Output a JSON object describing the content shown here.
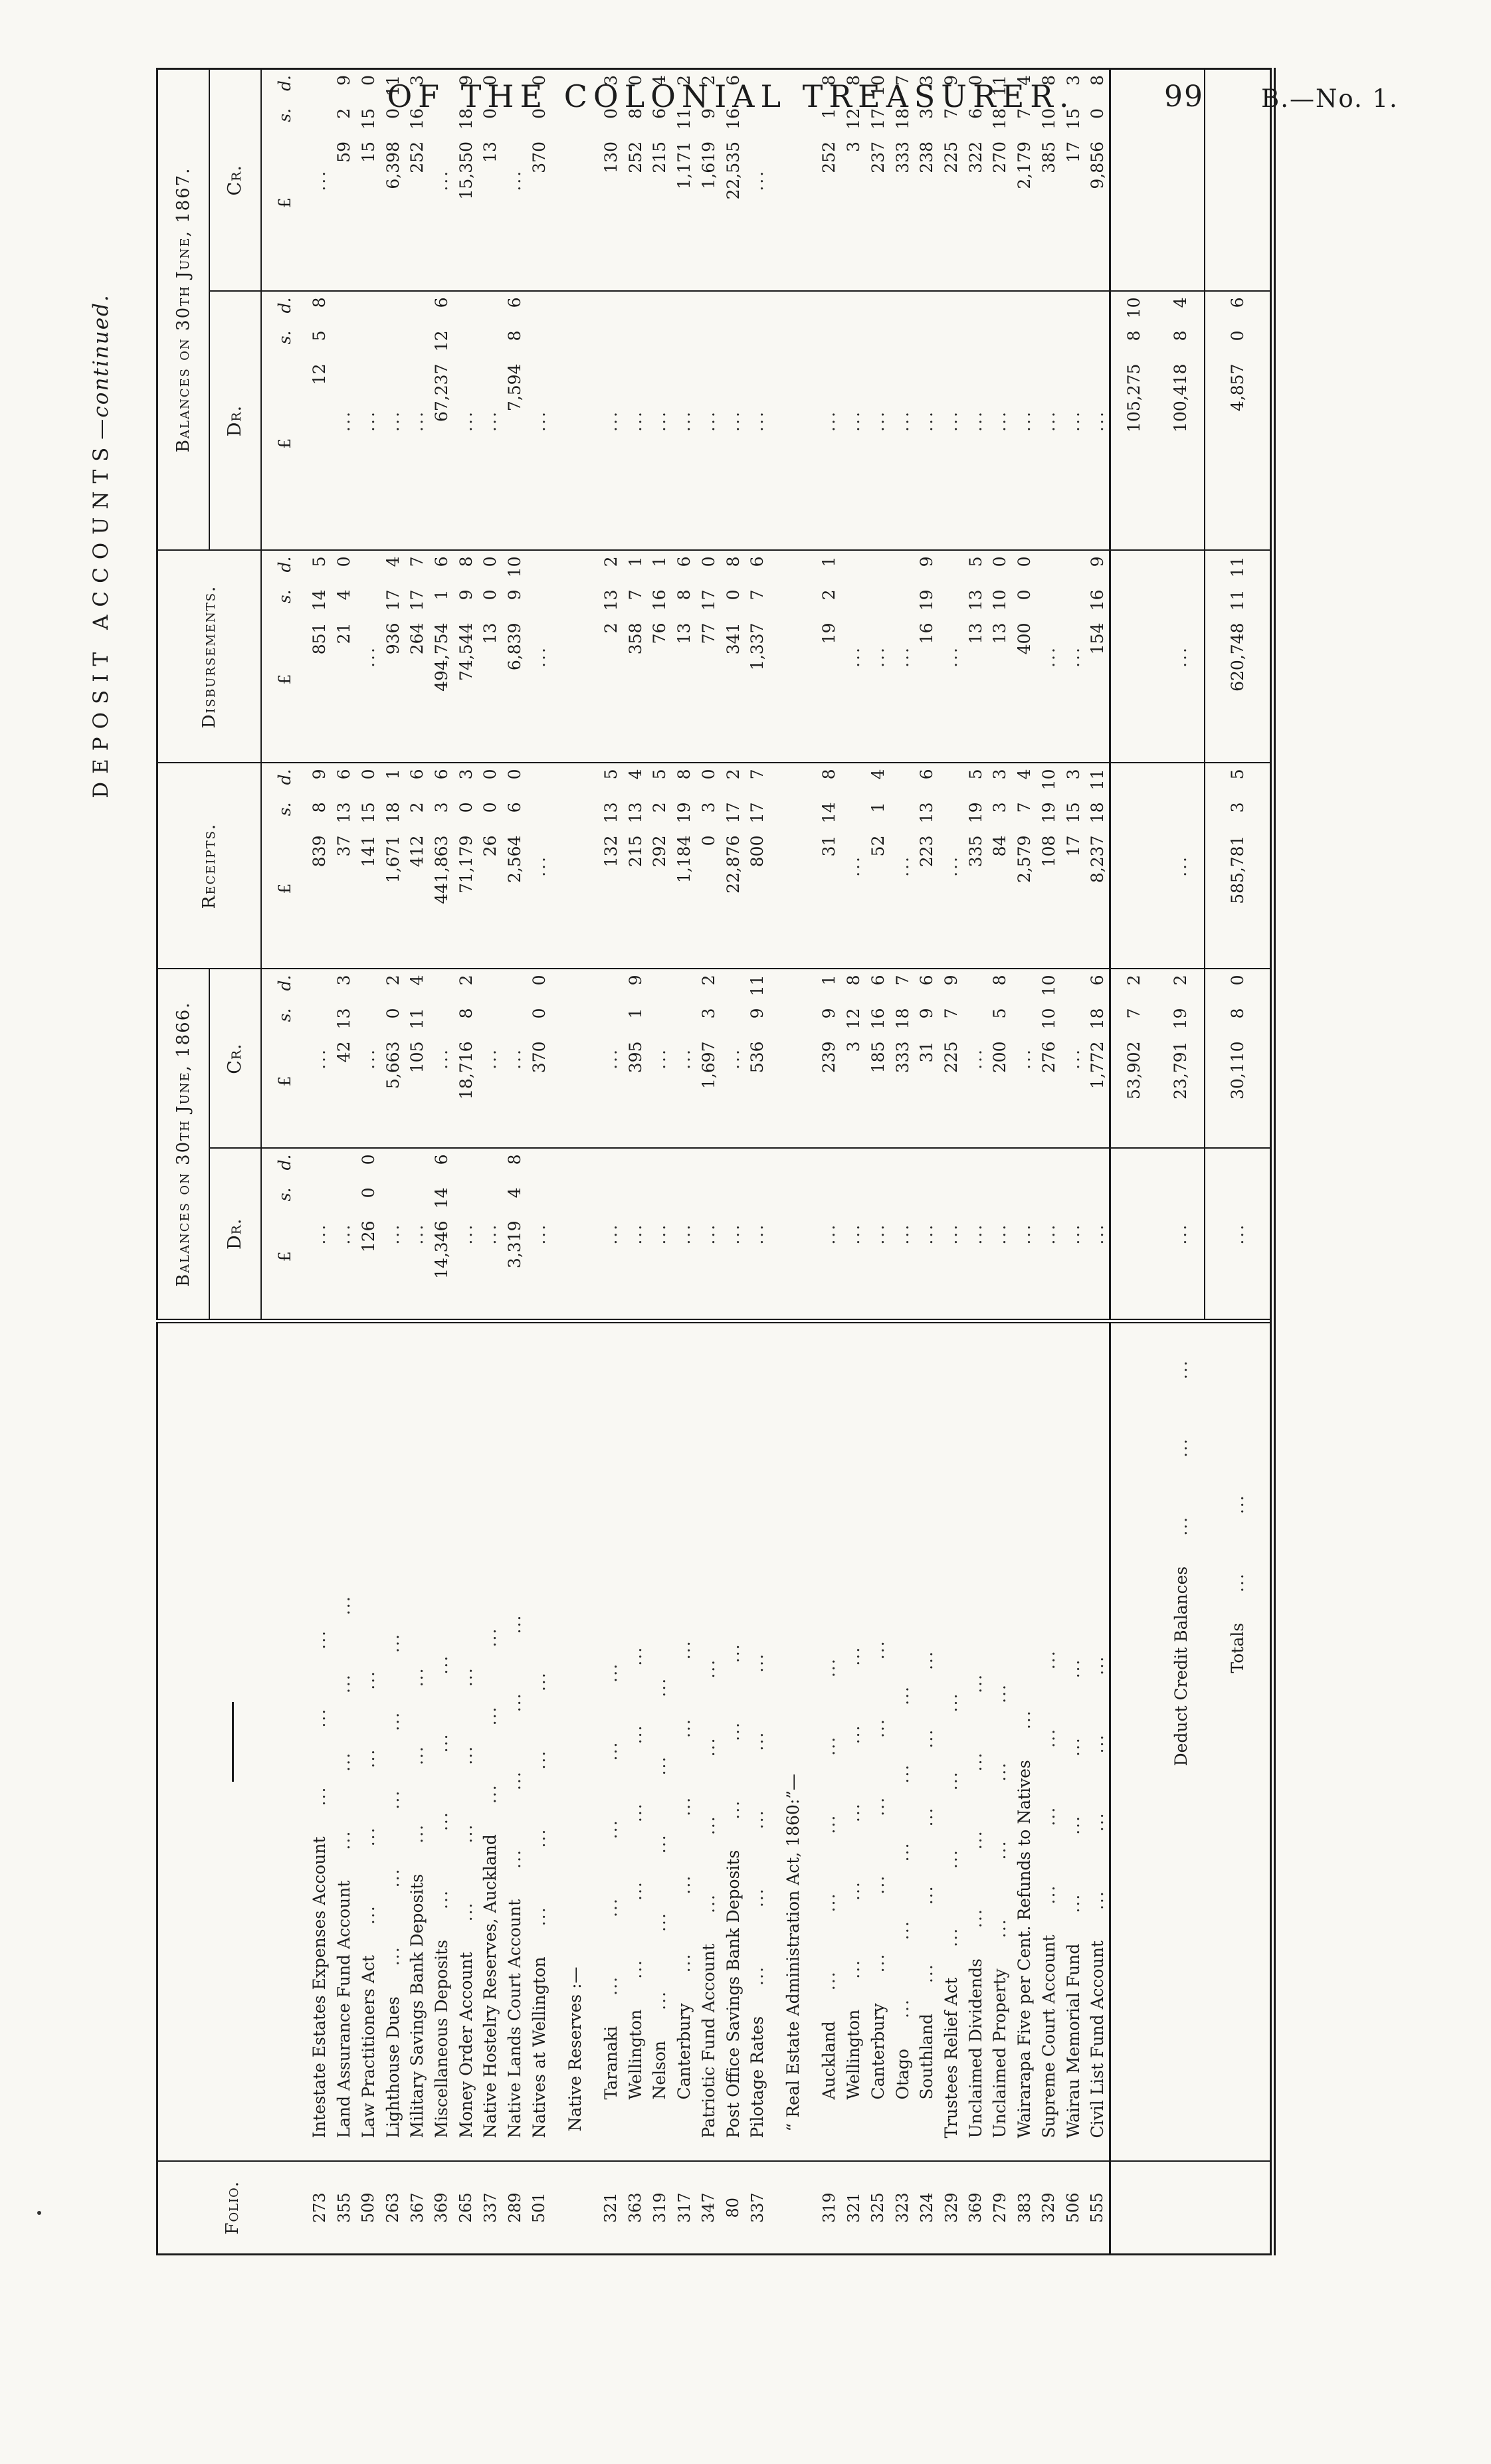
{
  "page": {
    "running_title": "OF THE COLONIAL TREASURER.",
    "page_number": "99",
    "issue_ref": "B.—No. 1.",
    "side_label_caps": "DEPOSIT ACCOUNTS",
    "side_label_continued": "—continued."
  },
  "table": {
    "header": {
      "folio": "Folio.",
      "bal_1866": "Balances on 30th June, 1866.",
      "receipts": "Receipts.",
      "disbursements": "Disbursements.",
      "bal_1867": "Balances on 30th June, 1867.",
      "dr": "Dr.",
      "cr": "Cr.",
      "pounds": "£",
      "shillings": "s.",
      "pence": "d."
    },
    "rows": [
      {
        "type": "account",
        "folio": "273",
        "name": "Intestate Estates Expenses Account",
        "leaders": 3,
        "dr66": ".",
        "cr66": ".",
        "rec": [
          "839",
          "8",
          "9"
        ],
        "disb": [
          "851",
          "14",
          "5"
        ],
        "dr67": [
          "12",
          "5",
          "8"
        ],
        "cr67": "."
      },
      {
        "type": "account",
        "folio": "355",
        "name": "Land Assurance Fund Account",
        "leaders": 4,
        "dr66": ".",
        "cr66": [
          "42",
          "13",
          "3"
        ],
        "rec": [
          "37",
          "13",
          "6"
        ],
        "disb": [
          "21",
          "4",
          "0"
        ],
        "dr67": ".",
        "cr67": [
          "59",
          "2",
          "9"
        ]
      },
      {
        "type": "account",
        "folio": "509",
        "name": "Law Practitioners Act",
        "leaders": 4,
        "dr66": [
          "126",
          "0",
          "0"
        ],
        "cr66": ".",
        "rec": [
          "141",
          "15",
          "0"
        ],
        "disb": ".",
        "dr67": ".",
        "cr67": [
          "15",
          "15",
          "0"
        ]
      },
      {
        "type": "account",
        "folio": "263",
        "name": "Lighthouse Dues",
        "leaders": 5,
        "dr66": ".",
        "cr66": [
          "5,663",
          "0",
          "2"
        ],
        "rec": [
          "1,671",
          "18",
          "1"
        ],
        "disb": [
          "936",
          "17",
          "4"
        ],
        "dr67": ".",
        "cr67": [
          "6,398",
          "0",
          "11"
        ]
      },
      {
        "type": "account",
        "folio": "367",
        "name": "Military Savings Bank Deposits",
        "leaders": 3,
        "dr66": ".",
        "cr66": [
          "105",
          "11",
          "4"
        ],
        "rec": [
          "412",
          "2",
          "6"
        ],
        "disb": [
          "264",
          "17",
          "7"
        ],
        "dr67": ".",
        "cr67": [
          "252",
          "16",
          "3"
        ]
      },
      {
        "type": "account",
        "folio": "369",
        "name": "Miscellaneous Deposits",
        "leaders": 4,
        "dr66": [
          "14,346",
          "14",
          "6"
        ],
        "cr66": ".",
        "rec": [
          "441,863",
          "3",
          "6"
        ],
        "disb": [
          "494,754",
          "1",
          "6"
        ],
        "dr67": [
          "67,237",
          "12",
          "6"
        ],
        "cr67": "."
      },
      {
        "type": "account",
        "folio": "265",
        "name": "Money Order Account",
        "leaders": 4,
        "dr66": ".",
        "cr66": [
          "18,716",
          "8",
          "2"
        ],
        "rec": [
          "71,179",
          "0",
          "3"
        ],
        "disb": [
          "74,544",
          "9",
          "8"
        ],
        "dr67": ".",
        "cr67": [
          "15,350",
          "18",
          "9"
        ]
      },
      {
        "type": "account",
        "folio": "337",
        "name": "Native Hostelry Reserves, Auckland",
        "leaders": 3,
        "dr66": ".",
        "cr66": ".",
        "rec": [
          "26",
          "0",
          "0"
        ],
        "disb": [
          "13",
          "0",
          "0"
        ],
        "dr67": ".",
        "cr67": [
          "13",
          "0",
          "0"
        ]
      },
      {
        "type": "account",
        "folio": "289",
        "name": "Native Lands Court Account",
        "leaders": 4,
        "dr66": [
          "3,319",
          "4",
          "8"
        ],
        "cr66": ".",
        "rec": [
          "2,564",
          "6",
          "0"
        ],
        "disb": [
          "6,839",
          "9",
          "10"
        ],
        "dr67": [
          "7,594",
          "8",
          "6"
        ],
        "cr67": "."
      },
      {
        "type": "account",
        "folio": "501",
        "name": "Natives at Wellington",
        "leaders": 4,
        "dr66": ".",
        "cr66": [
          "370",
          "0",
          "0"
        ],
        "rec": ".",
        "disb": ".",
        "dr67": ".",
        "cr67": [
          "370",
          "0",
          "0"
        ]
      },
      {
        "type": "group",
        "name": "Native Reserves :—"
      },
      {
        "type": "account",
        "folio": "321",
        "name": "Taranaki",
        "indent": 1,
        "leaders": 5,
        "dr66": ".",
        "cr66": ".",
        "rec": [
          "132",
          "13",
          "5"
        ],
        "disb": [
          "2",
          "13",
          "2"
        ],
        "dr67": ".",
        "cr67": [
          "130",
          "0",
          "3"
        ]
      },
      {
        "type": "account",
        "folio": "363",
        "name": "Wellington",
        "indent": 1,
        "leaders": 5,
        "dr66": ".",
        "cr66": [
          "395",
          "1",
          "9"
        ],
        "rec": [
          "215",
          "13",
          "4"
        ],
        "disb": [
          "358",
          "7",
          "1"
        ],
        "dr67": ".",
        "cr67": [
          "252",
          "8",
          "0"
        ]
      },
      {
        "type": "account",
        "folio": "319",
        "name": "Nelson",
        "indent": 1,
        "leaders": 5,
        "dr66": ".",
        "cr66": ".",
        "rec": [
          "292",
          "2",
          "5"
        ],
        "disb": [
          "76",
          "16",
          "1"
        ],
        "dr67": ".",
        "cr67": [
          "215",
          "6",
          "4"
        ]
      },
      {
        "type": "account",
        "folio": "317",
        "name": "Canterbury",
        "indent": 1,
        "leaders": 5,
        "dr66": ".",
        "cr66": ".",
        "rec": [
          "1,184",
          "19",
          "8"
        ],
        "disb": [
          "13",
          "8",
          "6"
        ],
        "dr67": ".",
        "cr67": [
          "1,171",
          "11",
          "2"
        ]
      },
      {
        "type": "account",
        "folio": "347",
        "name": "Patriotic Fund Account",
        "leaders": 4,
        "dr66": ".",
        "cr66": [
          "1,697",
          "3",
          "2"
        ],
        "rec": [
          "0",
          "3",
          "0"
        ],
        "disb": [
          "77",
          "17",
          "0"
        ],
        "dr67": ".",
        "cr67": [
          "1,619",
          "9",
          "2"
        ]
      },
      {
        "type": "account",
        "folio": "80",
        "name": "Post Office Savings Bank Deposits",
        "leaders": 3,
        "dr66": ".",
        "cr66": ".",
        "rec": [
          "22,876",
          "17",
          "2"
        ],
        "disb": [
          "341",
          "0",
          "8"
        ],
        "dr67": ".",
        "cr67": [
          "22,535",
          "16",
          "6"
        ]
      },
      {
        "type": "account",
        "folio": "337",
        "name": "Pilotage Rates",
        "leaders": 5,
        "dr66": ".",
        "cr66": [
          "536",
          "9",
          "11"
        ],
        "rec": [
          "800",
          "17",
          "7"
        ],
        "disb": [
          "1,337",
          "7",
          "6"
        ],
        "dr67": ".",
        "cr67": "."
      },
      {
        "type": "group",
        "name": "“ Real Estate Administration Act, 1860:”—"
      },
      {
        "type": "account",
        "folio": "319",
        "name": "Auckland",
        "indent": 1,
        "leaders": 5,
        "dr66": ".",
        "cr66": [
          "239",
          "9",
          "1"
        ],
        "rec": [
          "31",
          "14",
          "8"
        ],
        "disb": [
          "19",
          "2",
          "1"
        ],
        "dr67": ".",
        "cr67": [
          "252",
          "1",
          "8"
        ]
      },
      {
        "type": "account",
        "folio": "321",
        "name": "Wellington",
        "indent": 1,
        "leaders": 5,
        "dr66": ".",
        "cr66": [
          "3",
          "12",
          "8"
        ],
        "rec": ".",
        "disb": ".",
        "dr67": ".",
        "cr67": [
          "3",
          "12",
          "8"
        ]
      },
      {
        "type": "account",
        "folio": "325",
        "name": "Canterbury",
        "indent": 1,
        "leaders": 5,
        "dr66": ".",
        "cr66": [
          "185",
          "16",
          "6"
        ],
        "rec": [
          "52",
          "1",
          "4"
        ],
        "disb": ".",
        "dr67": ".",
        "cr67": [
          "237",
          "17",
          "10"
        ]
      },
      {
        "type": "account",
        "folio": "323",
        "name": "Otago",
        "indent": 1,
        "leaders": 5,
        "dr66": ".",
        "cr66": [
          "333",
          "18",
          "7"
        ],
        "rec": ".",
        "disb": ".",
        "dr67": ".",
        "cr67": [
          "333",
          "18",
          "7"
        ]
      },
      {
        "type": "account",
        "folio": "324",
        "name": "Southland",
        "indent": 1,
        "leaders": 5,
        "dr66": ".",
        "cr66": [
          "31",
          "9",
          "6"
        ],
        "rec": [
          "223",
          "13",
          "6"
        ],
        "disb": [
          "16",
          "19",
          "9"
        ],
        "dr67": ".",
        "cr67": [
          "238",
          "3",
          "3"
        ]
      },
      {
        "type": "account",
        "folio": "329",
        "name": "Trustees Relief Act",
        "leaders": 4,
        "dr66": ".",
        "cr66": [
          "225",
          "7",
          "9"
        ],
        "rec": ".",
        "disb": ".",
        "dr67": ".",
        "cr67": [
          "225",
          "7",
          "9"
        ]
      },
      {
        "type": "account",
        "folio": "369",
        "name": "Unclaimed Dividends",
        "leaders": 4,
        "dr66": ".",
        "cr66": ".",
        "rec": [
          "335",
          "19",
          "5"
        ],
        "disb": [
          "13",
          "13",
          "5"
        ],
        "dr67": ".",
        "cr67": [
          "322",
          "6",
          "0"
        ]
      },
      {
        "type": "account",
        "folio": "279",
        "name": "Unclaimed Property",
        "leaders": 4,
        "dr66": ".",
        "cr66": [
          "200",
          "5",
          "8"
        ],
        "rec": [
          "84",
          "3",
          "3"
        ],
        "disb": [
          "13",
          "10",
          "0"
        ],
        "dr67": ".",
        "cr67": [
          "270",
          "18",
          "11"
        ]
      },
      {
        "type": "account",
        "folio": "383",
        "name": "Wairarapa Five per Cent. Refunds to Natives",
        "leaders": 1,
        "dr66": ".",
        "cr66": ".",
        "rec": [
          "2,579",
          "7",
          "4"
        ],
        "disb": [
          "400",
          "0",
          "0"
        ],
        "dr67": ".",
        "cr67": [
          "2,179",
          "7",
          "4"
        ]
      },
      {
        "type": "account",
        "folio": "329",
        "name": "Supreme Court Account",
        "leaders": 4,
        "dr66": ".",
        "cr66": [
          "276",
          "10",
          "10"
        ],
        "rec": [
          "108",
          "19",
          "10"
        ],
        "disb": ".",
        "dr67": ".",
        "cr67": [
          "385",
          "10",
          "8"
        ]
      },
      {
        "type": "account",
        "folio": "506",
        "name": "Wairau Memorial Fund",
        "leaders": 4,
        "dr66": ".",
        "cr66": ".",
        "rec": [
          "17",
          "15",
          "3"
        ],
        "disb": ".",
        "dr67": ".",
        "cr67": [
          "17",
          "15",
          "3"
        ]
      },
      {
        "type": "account",
        "folio": "555",
        "name": "Civil List Fund Account",
        "leaders": 4,
        "dr66": ".",
        "cr66": [
          "1,772",
          "18",
          "6"
        ],
        "rec": [
          "8,237",
          "18",
          "11"
        ],
        "disb": [
          "154",
          "16",
          "9"
        ],
        "dr67": ".",
        "cr67": [
          "9,856",
          "0",
          "8"
        ]
      },
      {
        "type": "subtotal",
        "name": "",
        "dr66": "",
        "cr66": [
          "53,902",
          "7",
          "2"
        ],
        "rec": "",
        "disb": "",
        "dr67": [
          "105,275",
          "8",
          "10"
        ],
        "cr67": ""
      },
      {
        "type": "deduct",
        "name": "Deduct Credit Balances",
        "leaders": 3,
        "dr66": ".",
        "cr66": [
          "23,791",
          "19",
          "2"
        ],
        "rec": ".",
        "disb": ".",
        "dr67": [
          "100,418",
          "8",
          "4"
        ],
        "cr67": ""
      },
      {
        "type": "totals",
        "name": "Totals",
        "leaders": 2,
        "dr66": ".",
        "cr66": [
          "30,110",
          "8",
          "0"
        ],
        "rec": [
          "585,781",
          "3",
          "5"
        ],
        "disb": [
          "620,748",
          "11",
          "11"
        ],
        "dr67": [
          "4,857",
          "0",
          "6"
        ],
        "cr67": ""
      }
    ]
  }
}
